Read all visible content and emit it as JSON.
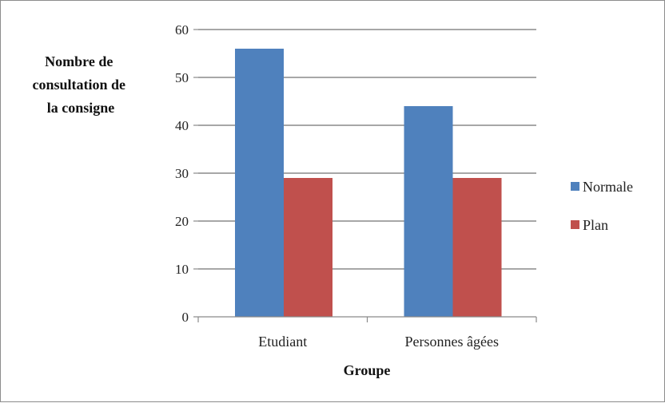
{
  "chart_data": {
    "type": "bar",
    "title": "",
    "xlabel": "Groupe",
    "ylabel": [
      "Nombre de",
      "consultation de",
      "la consigne"
    ],
    "categories": [
      "Etudiant",
      "Personnes âgées"
    ],
    "series": [
      {
        "name": "Normale",
        "color": "#4f81bd",
        "values": [
          56,
          44
        ]
      },
      {
        "name": "Plan",
        "color": "#c0504d",
        "values": [
          29,
          29
        ]
      }
    ],
    "ylim": [
      0,
      60
    ],
    "yticks": [
      0,
      10,
      20,
      30,
      40,
      50,
      60
    ],
    "grid": true,
    "legend_position": "right"
  }
}
